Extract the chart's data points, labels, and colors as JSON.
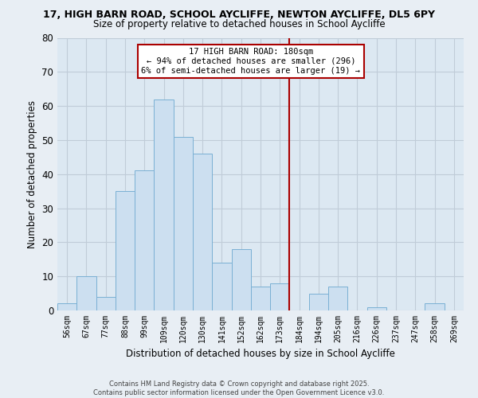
{
  "title_line1": "17, HIGH BARN ROAD, SCHOOL AYCLIFFE, NEWTON AYCLIFFE, DL5 6PY",
  "title_line2": "Size of property relative to detached houses in School Aycliffe",
  "xlabel": "Distribution of detached houses by size in School Aycliffe",
  "ylabel": "Number of detached properties",
  "bar_labels": [
    "56sqm",
    "67sqm",
    "77sqm",
    "88sqm",
    "99sqm",
    "109sqm",
    "120sqm",
    "130sqm",
    "141sqm",
    "152sqm",
    "162sqm",
    "173sqm",
    "184sqm",
    "194sqm",
    "205sqm",
    "216sqm",
    "226sqm",
    "237sqm",
    "247sqm",
    "258sqm",
    "269sqm"
  ],
  "bar_values": [
    2,
    10,
    4,
    35,
    41,
    62,
    51,
    46,
    14,
    18,
    7,
    8,
    0,
    5,
    7,
    0,
    1,
    0,
    0,
    2,
    0
  ],
  "bar_color": "#ccdff0",
  "bar_edge_color": "#7ab0d4",
  "vline_x_index": 12,
  "vline_color": "#aa0000",
  "annotation_text": "17 HIGH BARN ROAD: 180sqm\n← 94% of detached houses are smaller (296)\n6% of semi-detached houses are larger (19) →",
  "ylim": [
    0,
    80
  ],
  "yticks": [
    0,
    10,
    20,
    30,
    40,
    50,
    60,
    70,
    80
  ],
  "background_color": "#e8eef4",
  "plot_bg_color": "#dce8f2",
  "grid_color": "#c0ccd8",
  "footer_line1": "Contains HM Land Registry data © Crown copyright and database right 2025.",
  "footer_line2": "Contains public sector information licensed under the Open Government Licence v3.0."
}
